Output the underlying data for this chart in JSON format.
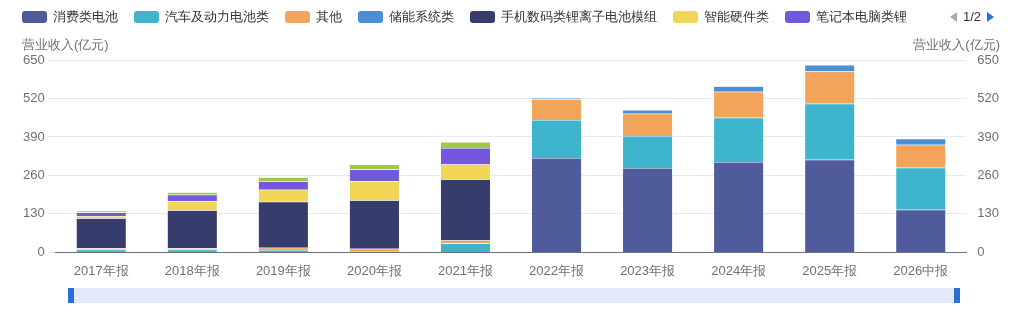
{
  "chart_data": {
    "type": "bar",
    "stacked": true,
    "categories": [
      "2017年报",
      "2018年报",
      "2019年报",
      "2020年报",
      "2021年报",
      "2022年报",
      "2023年报",
      "2024年报",
      "2025年报",
      "2026中报"
    ],
    "series": [
      {
        "name": "消费类电池",
        "color": "#4f5b9b",
        "values": [
          0,
          0,
          0,
          0,
          0,
          319,
          285,
          305,
          313,
          144
        ]
      },
      {
        "name": "汽车及动力电池类",
        "color": "#3eb5cc",
        "values": [
          9,
          9,
          8,
          5,
          30,
          128,
          108,
          150,
          189,
          142
        ]
      },
      {
        "name": "其他",
        "color": "#f2a45a",
        "values": [
          5,
          5,
          8,
          7,
          10,
          70,
          75,
          88,
          109,
          78
        ]
      },
      {
        "name": "储能系统类",
        "color": "#4a8ed8",
        "values": [
          0,
          0,
          0,
          0,
          0,
          5,
          13,
          18,
          22,
          20
        ]
      },
      {
        "name": "手机数码类锂离子电池模组",
        "color": "#363c6b",
        "values": [
          101,
          128,
          155,
          164,
          207,
          0,
          0,
          0,
          0,
          0
        ]
      },
      {
        "name": "智能硬件类",
        "color": "#f1d554",
        "values": [
          8,
          31,
          41,
          64,
          50,
          0,
          0,
          0,
          0,
          0
        ]
      },
      {
        "name": "笔记本电脑类锂",
        "color": "#7358de",
        "values": [
          12,
          22,
          28,
          40,
          56,
          0,
          0,
          0,
          0,
          0
        ]
      },
      {
        "color": "#a2c84a",
        "values": [
          6,
          8,
          14,
          17,
          20,
          0,
          0,
          0,
          0,
          0
        ]
      }
    ],
    "ylabel": "营业收入(亿元)",
    "y2label": "营业收入(亿元)",
    "ylim": [
      0,
      650
    ],
    "yticks": [
      0,
      130,
      260,
      390,
      520,
      650
    ],
    "y2lim": [
      0,
      650
    ],
    "y2ticks": [
      0,
      130,
      260,
      390,
      520,
      650
    ],
    "grid": "y",
    "legend": "top",
    "annotations": [
      "1/2"
    ]
  }
}
